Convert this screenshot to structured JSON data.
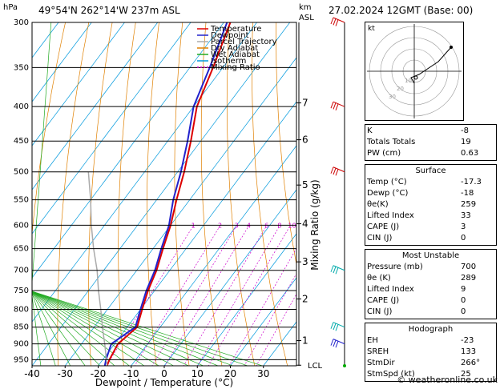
{
  "header": {
    "location": "49°54'N  262°14'W  237m  ASL",
    "datetime": "27.02.2024  12GMT  (Base: 00)",
    "units_left": "hPa",
    "units_right_km": "km",
    "units_right_asl": "ASL"
  },
  "chart_data": {
    "type": "skew-t",
    "xlabel": "Dewpoint / Temperature (°C)",
    "ylabel_right": "Mixing Ratio (g/kg)",
    "pressure_levels": [
      300,
      350,
      400,
      450,
      500,
      550,
      600,
      650,
      700,
      750,
      800,
      850,
      900,
      950
    ],
    "temp_ticks": [
      -40,
      -30,
      -20,
      -10,
      0,
      10,
      20,
      30
    ],
    "xlim": [
      -40,
      40
    ],
    "ylim_hpa": [
      300,
      970
    ],
    "km_ticks": [
      {
        "km": "7",
        "p": 395
      },
      {
        "km": "6",
        "p": 448
      },
      {
        "km": "5",
        "p": 523
      },
      {
        "km": "4",
        "p": 597
      },
      {
        "km": "3",
        "p": 680
      },
      {
        "km": "2",
        "p": 772
      },
      {
        "km": "1",
        "p": 890
      }
    ],
    "lcl_label": "LCL",
    "lcl_p": 968,
    "mixing_ratio_labels": [
      "1",
      "2",
      "3",
      "4",
      "6",
      "8",
      "10",
      "15",
      "20",
      "25"
    ],
    "mixing_ratio_values": [
      1,
      2,
      3,
      4,
      6,
      8,
      10,
      15,
      20,
      25
    ],
    "legend": [
      {
        "name": "Temperature",
        "color": "#dd0000",
        "dash": ""
      },
      {
        "name": "Dewpoint",
        "color": "#2222cc",
        "dash": ""
      },
      {
        "name": "Parcel Trajectory",
        "color": "#aaaaaa",
        "dash": ""
      },
      {
        "name": "Dry Adiabat",
        "color": "#e08000",
        "dash": ""
      },
      {
        "name": "Wet Adiabat",
        "color": "#22aa22",
        "dash": ""
      },
      {
        "name": "Isotherm",
        "color": "#0099dd",
        "dash": ""
      },
      {
        "name": "Mixing Ratio",
        "color": "#cc00cc",
        "dash": "2,2"
      }
    ],
    "series": [
      {
        "name": "Temperature",
        "color": "#dd0000",
        "points": [
          [
            970,
            -17.3
          ],
          [
            950,
            -18
          ],
          [
            900,
            -19
          ],
          [
            850,
            -17
          ],
          [
            800,
            -19.5
          ],
          [
            750,
            -22
          ],
          [
            700,
            -24
          ],
          [
            650,
            -27
          ],
          [
            600,
            -30
          ],
          [
            550,
            -34
          ],
          [
            500,
            -38
          ],
          [
            450,
            -43
          ],
          [
            400,
            -49
          ],
          [
            350,
            -53
          ],
          [
            300,
            -58
          ]
        ]
      },
      {
        "name": "Dewpoint",
        "color": "#2222cc",
        "points": [
          [
            970,
            -18
          ],
          [
            950,
            -19
          ],
          [
            900,
            -21
          ],
          [
            850,
            -17.5
          ],
          [
            800,
            -20
          ],
          [
            750,
            -22.5
          ],
          [
            700,
            -24.5
          ],
          [
            650,
            -27.5
          ],
          [
            600,
            -30.5
          ],
          [
            550,
            -35
          ],
          [
            500,
            -39
          ],
          [
            450,
            -44
          ],
          [
            400,
            -50
          ],
          [
            350,
            -54
          ],
          [
            300,
            -59
          ]
        ]
      },
      {
        "name": "Parcel Trajectory",
        "color": "#aaaaaa",
        "points": [
          [
            970,
            -17.3
          ],
          [
            900,
            -23
          ],
          [
            850,
            -27.5
          ],
          [
            800,
            -32
          ],
          [
            750,
            -37
          ],
          [
            700,
            -42
          ],
          [
            650,
            -48
          ],
          [
            600,
            -54
          ],
          [
            550,
            -60
          ],
          [
            500,
            -67
          ]
        ]
      }
    ]
  },
  "hodograph": {
    "unit_label": "kt",
    "ring_labels": [
      "10",
      "20",
      "30"
    ]
  },
  "indices": [
    {
      "label": "K",
      "value": "-8"
    },
    {
      "label": "Totals Totals",
      "value": "19"
    },
    {
      "label": "PW (cm)",
      "value": "0.63"
    }
  ],
  "surface": {
    "title": "Surface",
    "rows": [
      {
        "label": "Temp (°C)",
        "value": "-17.3"
      },
      {
        "label": "Dewp (°C)",
        "value": "-18"
      },
      {
        "label": "θe(K)",
        "value": "259"
      },
      {
        "label": "Lifted Index",
        "value": "33"
      },
      {
        "label": "CAPE (J)",
        "value": "3"
      },
      {
        "label": "CIN (J)",
        "value": "0"
      }
    ]
  },
  "most_unstable": {
    "title": "Most Unstable",
    "rows": [
      {
        "label": "Pressure (mb)",
        "value": "700"
      },
      {
        "label": "θe (K)",
        "value": "289"
      },
      {
        "label": "Lifted Index",
        "value": "9"
      },
      {
        "label": "CAPE (J)",
        "value": "0"
      },
      {
        "label": "CIN (J)",
        "value": "0"
      }
    ]
  },
  "hodograph_table": {
    "title": "Hodograph",
    "rows": [
      {
        "label": "EH",
        "value": "-23"
      },
      {
        "label": "SREH",
        "value": "133"
      },
      {
        "label": "StmDir",
        "value": "266°"
      },
      {
        "label": "StmSpd (kt)",
        "value": "25"
      }
    ]
  },
  "footer": "© weatheronline.co.uk"
}
